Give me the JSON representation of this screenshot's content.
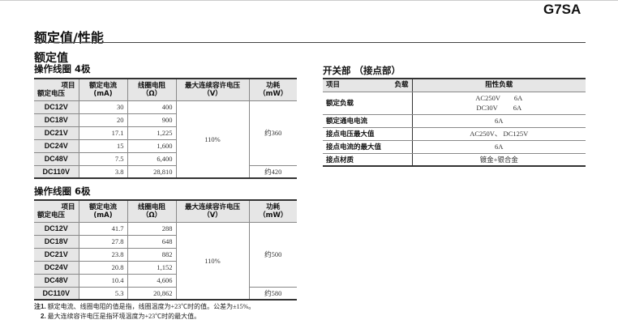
{
  "header": {
    "model": "G7SA",
    "title": "额定值/性能"
  },
  "ratings": {
    "title": "额定值",
    "headers": {
      "item": "项目",
      "rated_voltage": "额定电压",
      "current": "额定电流",
      "current_unit": "(mA)",
      "resistance": "线圈电阻",
      "resistance_unit": "（Ω）",
      "max_voltage": "最大连续容许电压",
      "max_voltage_unit": "（V）",
      "power": "功耗",
      "power_unit": "（mW）"
    },
    "coil4": {
      "title": "操作线圈 4极",
      "max_voltage": "110%",
      "power_main": "约360",
      "power_last": "约420",
      "rows": [
        {
          "v": "DC12V",
          "i": "30",
          "r": "400"
        },
        {
          "v": "DC18V",
          "i": "20",
          "r": "900"
        },
        {
          "v": "DC21V",
          "i": "17.1",
          "r": "1,225"
        },
        {
          "v": "DC24V",
          "i": "15",
          "r": "1,600"
        },
        {
          "v": "DC48V",
          "i": "7.5",
          "r": "6,400"
        },
        {
          "v": "DC110V",
          "i": "3.8",
          "r": "28,810"
        }
      ]
    },
    "coil6": {
      "title": "操作线圈 6极",
      "max_voltage": "110%",
      "power_main": "约500",
      "power_last": "约580",
      "rows": [
        {
          "v": "DC12V",
          "i": "41.7",
          "r": "288"
        },
        {
          "v": "DC18V",
          "i": "27.8",
          "r": "648"
        },
        {
          "v": "DC21V",
          "i": "23.8",
          "r": "882"
        },
        {
          "v": "DC24V",
          "i": "20.8",
          "r": "1,152"
        },
        {
          "v": "DC48V",
          "i": "10.4",
          "r": "4,606"
        },
        {
          "v": "DC110V",
          "i": "5.3",
          "r": "20,862"
        }
      ]
    },
    "notes": [
      {
        "label": "注1.",
        "text": "额定电流、线圈电阻的值是指，线圈温度为+23℃时的值。公差为±15%。"
      },
      {
        "label": "2.",
        "text": "最大连续容许电压是指环境温度为+23℃时的最大值。"
      }
    ]
  },
  "switch": {
    "title": "开关部 （接点部）",
    "headers": {
      "item": "项目",
      "load": "负载",
      "resistive": "阻性负载"
    },
    "rows": [
      {
        "label": "额定负载",
        "value": "AC250V　　6A",
        "value2": "DC30V　　 6A"
      },
      {
        "label": "额定通电电流",
        "value": "6A"
      },
      {
        "label": "接点电压最大值",
        "value": "AC250V、 DC125V"
      },
      {
        "label": "接点电流的最大值",
        "value": "6A"
      },
      {
        "label": "接点材质",
        "value": "镀金+银合金"
      }
    ]
  }
}
